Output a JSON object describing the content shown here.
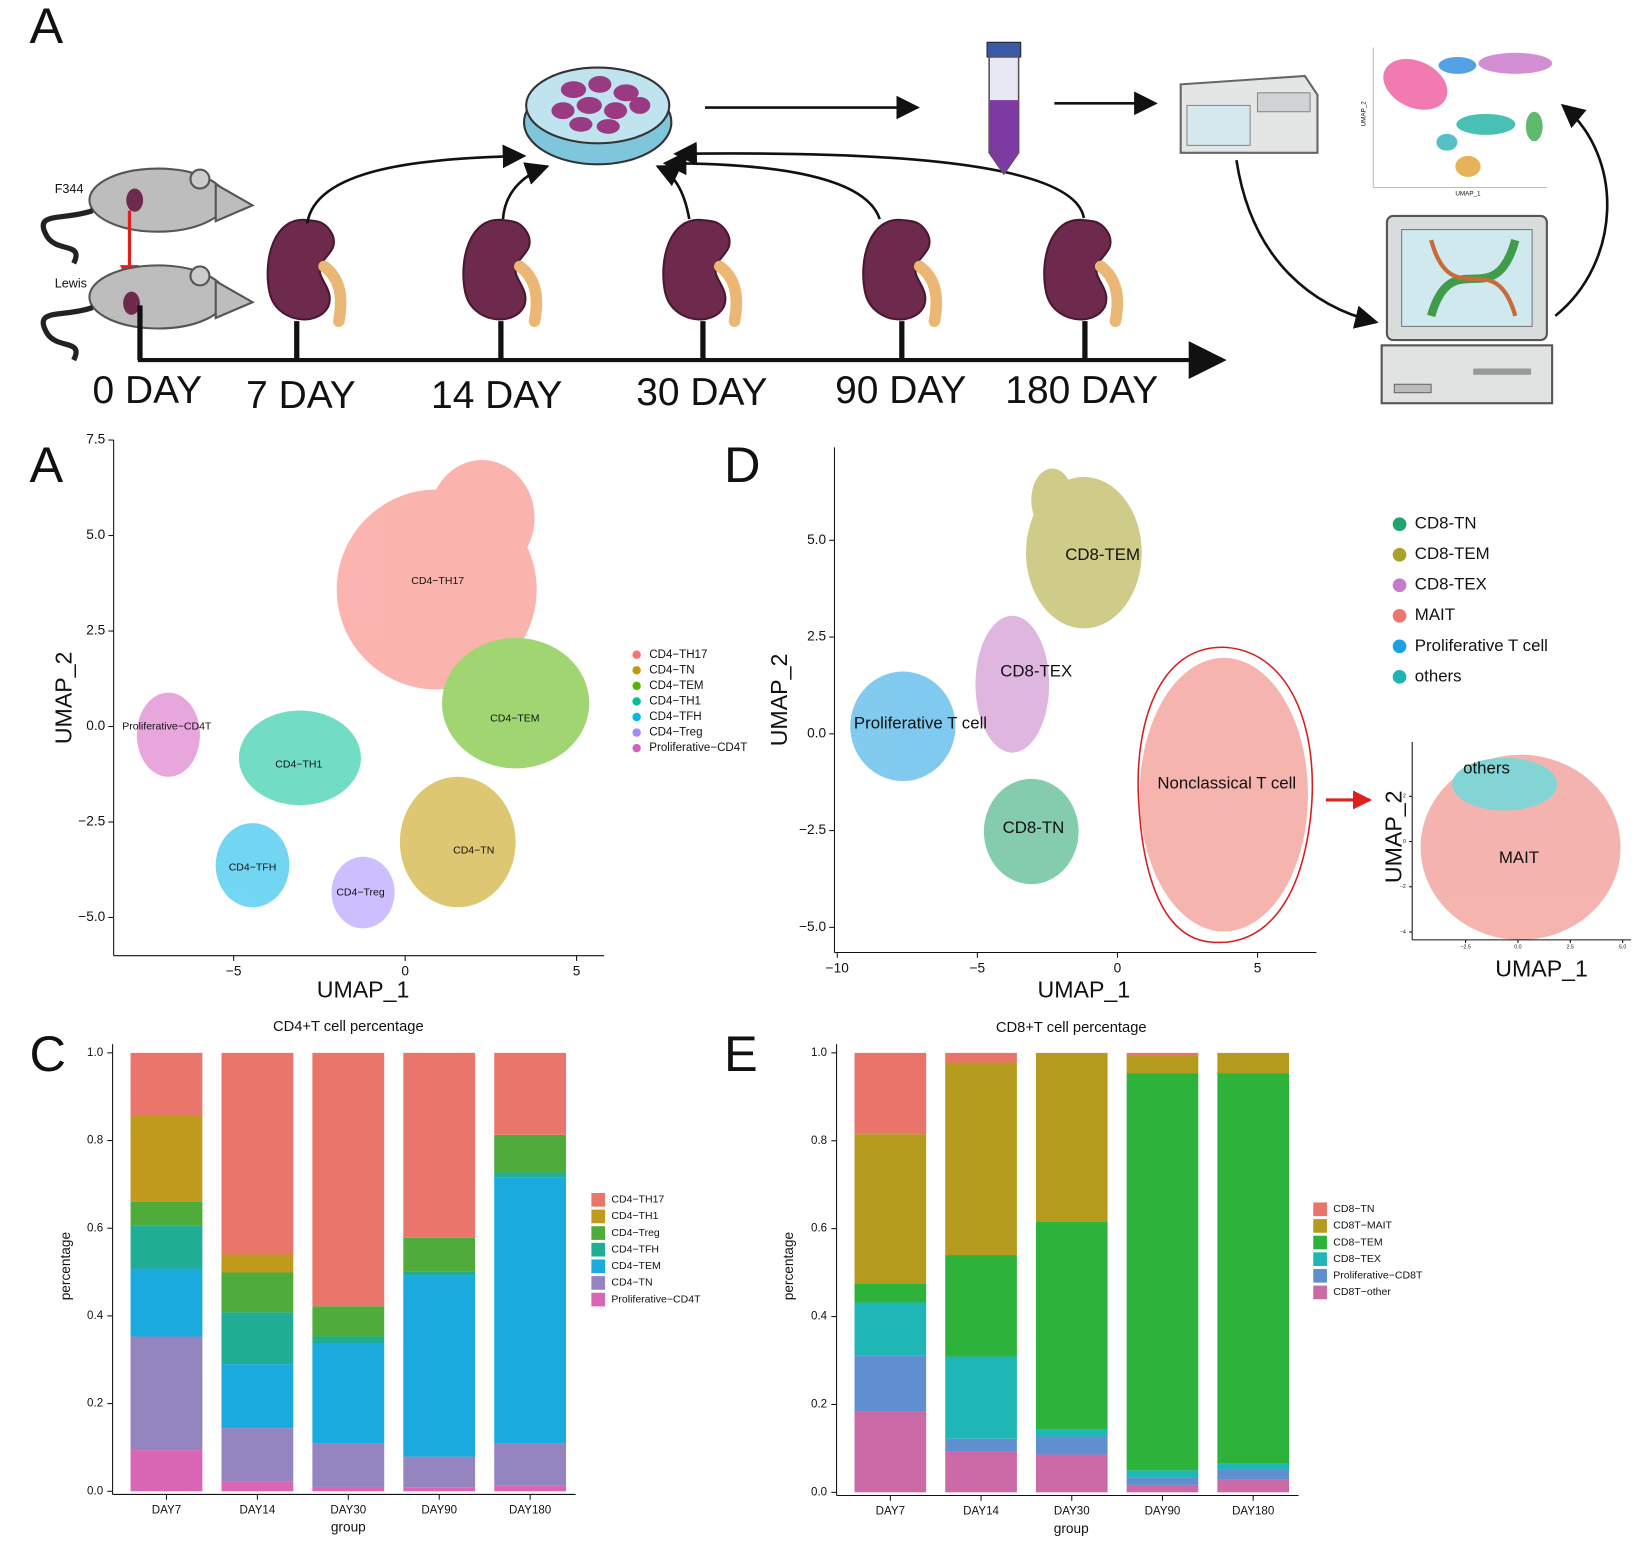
{
  "schematic": {
    "label": "A",
    "donor": "F344",
    "recipient": "Lewis",
    "days": [
      "0 DAY",
      "7 DAY",
      "14 DAY",
      "30 DAY",
      "90 DAY",
      "180 DAY"
    ],
    "mini_umap": {
      "x_label": "UMAP_1",
      "y_label": "UMAP_2"
    }
  },
  "chart_data": [
    {
      "type": "scatter",
      "panel": "A",
      "x_label": "UMAP_1",
      "y_label": "UMAP_2",
      "xlim": [
        -8.5,
        5.8
      ],
      "ylim": [
        -6.0,
        7.5
      ],
      "xticks": [
        {
          "value": -5,
          "label": "−5"
        },
        0,
        5
      ],
      "yticks": [
        {
          "value": -5,
          "label": "−5.0"
        },
        {
          "value": -2.5,
          "label": "−2.5"
        },
        {
          "value": 0,
          "label": "0.0"
        },
        {
          "value": 2.5,
          "label": "2.5"
        },
        {
          "value": 5,
          "label": "5.0"
        },
        {
          "value": 7.5,
          "label": "7.5"
        }
      ],
      "series": [
        {
          "name": "CD4−TH17",
          "color": "#f8766d"
        },
        {
          "name": "CD4−TN",
          "color": "#c49a00"
        },
        {
          "name": "CD4−TEM",
          "color": "#53b400"
        },
        {
          "name": "CD4−TH1",
          "color": "#00c094"
        },
        {
          "name": "CD4−TFH",
          "color": "#00b6eb"
        },
        {
          "name": "CD4−Treg",
          "color": "#a58aff"
        },
        {
          "name": "Proliferative−CD4T",
          "color": "#d45fc0"
        }
      ],
      "cluster_labels": [
        {
          "text": "CD4−TH17",
          "x": 0.95,
          "y": 3.8
        },
        {
          "text": "Proliferative−CD4T",
          "x": -6.95,
          "y": 0.0
        },
        {
          "text": "CD4−TH1",
          "x": -3.1,
          "y": -1.0
        },
        {
          "text": "CD4−TEM",
          "x": 3.2,
          "y": 0.2
        },
        {
          "text": "CD4−TFH",
          "x": -4.45,
          "y": -3.7
        },
        {
          "text": "CD4−Treg",
          "x": -1.3,
          "y": -4.35
        },
        {
          "text": "CD4−TN",
          "x": 2.0,
          "y": -3.25
        }
      ]
    },
    {
      "type": "scatter",
      "panel": "D",
      "x_label": "UMAP_1",
      "y_label": "UMAP_2",
      "xlim": [
        -10.1,
        7.1
      ],
      "ylim": [
        -5.65,
        7.4
      ],
      "xticks": [
        {
          "value": -10,
          "label": "−10"
        },
        {
          "value": -5,
          "label": "−5"
        },
        0,
        5
      ],
      "yticks": [
        {
          "value": -5,
          "label": "−5.0"
        },
        {
          "value": -2.5,
          "label": "−2.5"
        },
        {
          "value": 0,
          "label": "0.0"
        },
        {
          "value": 2.5,
          "label": "2.5"
        },
        {
          "value": 5,
          "label": "5.0"
        }
      ],
      "series": [
        {
          "name": "CD8-TN",
          "color": "#22a36e"
        },
        {
          "name": "CD8-TEM",
          "color": "#a9a22a"
        },
        {
          "name": "CD8-TEX",
          "color": "#c47cc8"
        },
        {
          "name": "MAIT",
          "color": "#ec766c"
        },
        {
          "name": "Proliferative T cell",
          "color": "#1ba0e2"
        },
        {
          "name": "others",
          "color": "#1eb4b4"
        }
      ],
      "cluster_labels": [
        {
          "text": "CD8-TEM",
          "x": -0.53,
          "y": 4.6
        },
        {
          "text": "CD8-TEX",
          "x": -2.9,
          "y": 1.6
        },
        {
          "text": "Proliferative T cell",
          "x": -7.03,
          "y": 0.25
        },
        {
          "text": "Nonclassical T cell",
          "x": 3.9,
          "y": -1.3
        },
        {
          "text": "CD8-TN",
          "x": -3.0,
          "y": -2.45
        }
      ]
    },
    {
      "type": "scatter",
      "x_label": "UMAP_1",
      "y_label": "UMAP_2",
      "xlim": [
        -5.05,
        5.4
      ],
      "ylim": [
        -4.35,
        4.4
      ],
      "xticks": [
        {
          "value": -2.5,
          "label": "−2.5"
        },
        {
          "value": 0,
          "label": "0.0"
        },
        {
          "value": 2.5,
          "label": "2.5"
        },
        {
          "value": 5,
          "label": "5.0"
        }
      ],
      "yticks": [
        {
          "value": -4,
          "label": "−4"
        },
        {
          "value": -2,
          "label": "−2"
        },
        0,
        2
      ],
      "cluster_labels": [
        {
          "text": "others",
          "x": -1.5,
          "y": 3.2
        },
        {
          "text": "MAIT",
          "x": 0.05,
          "y": -0.75
        }
      ]
    },
    {
      "type": "bar",
      "stacked": true,
      "panel": "C",
      "title": "CD4+T cell percentage",
      "x_label": "group",
      "y_label": "percentage",
      "categories": [
        "DAY7",
        "DAY14",
        "DAY30",
        "DAY90",
        "DAY180"
      ],
      "ylim": [
        0,
        1.02
      ],
      "yticks": [
        {
          "value": 0,
          "label": "0.0"
        },
        {
          "value": 0.2,
          "label": "0.2"
        },
        {
          "value": 0.4,
          "label": "0.4"
        },
        {
          "value": 0.6,
          "label": "0.6"
        },
        {
          "value": 0.8,
          "label": "0.8"
        },
        {
          "value": 1,
          "label": "1.0"
        }
      ],
      "series": [
        {
          "name": "CD4−TH17",
          "color": "#ea756b",
          "values": [
            0.144,
            0.46,
            0.578,
            0.422,
            0.187
          ]
        },
        {
          "name": "CD4−TH1",
          "color": "#c09a1c",
          "values": [
            0.196,
            0.041,
            0,
            0,
            0
          ]
        },
        {
          "name": "CD4−Treg",
          "color": "#4fab3a",
          "values": [
            0.053,
            0.091,
            0.069,
            0.077,
            0.086
          ]
        },
        {
          "name": "CD4−TFH",
          "color": "#1fae94",
          "values": [
            0.099,
            0.118,
            0.017,
            0.009,
            0.012
          ]
        },
        {
          "name": "CD4−TEM",
          "color": "#1aaade",
          "values": [
            0.155,
            0.146,
            0.226,
            0.413,
            0.605
          ]
        },
        {
          "name": "CD4−TN",
          "color": "#9484c0",
          "values": [
            0.259,
            0.122,
            0.1,
            0.071,
            0.096
          ]
        },
        {
          "name": "Proliferative−CD4T",
          "color": "#d866b4",
          "values": [
            0.094,
            0.022,
            0.01,
            0.008,
            0.014
          ]
        }
      ]
    },
    {
      "type": "bar",
      "stacked": true,
      "panel": "E",
      "title": "CD8+T cell percentage",
      "x_label": "group",
      "y_label": "percentage",
      "categories": [
        "DAY7",
        "DAY14",
        "DAY30",
        "DAY90",
        "DAY180"
      ],
      "ylim": [
        0,
        1.02
      ],
      "yticks": [
        {
          "value": 0,
          "label": "0.0"
        },
        {
          "value": 0.2,
          "label": "0.2"
        },
        {
          "value": 0.4,
          "label": "0.4"
        },
        {
          "value": 0.6,
          "label": "0.6"
        },
        {
          "value": 0.8,
          "label": "0.8"
        },
        {
          "value": 1,
          "label": "1.0"
        }
      ],
      "series": [
        {
          "name": "CD8−TN",
          "color": "#ea746a",
          "values": [
            0.185,
            0.022,
            0,
            0.005,
            0
          ]
        },
        {
          "name": "CD8T−MAIT",
          "color": "#b49b1e",
          "values": [
            0.34,
            0.438,
            0.384,
            0.041,
            0.046
          ]
        },
        {
          "name": "CD8−TEM",
          "color": "#2db33b",
          "values": [
            0.043,
            0.231,
            0.472,
            0.904,
            0.889
          ]
        },
        {
          "name": "CD8−TEX",
          "color": "#1fb6b6",
          "values": [
            0.12,
            0.187,
            0.017,
            0.016,
            0.012
          ]
        },
        {
          "name": "Proliferative−CD8T",
          "color": "#5f8fcf",
          "values": [
            0.127,
            0.028,
            0.041,
            0.017,
            0.024
          ]
        },
        {
          "name": "CD8T−other",
          "color": "#cc6aa8",
          "values": [
            0.185,
            0.094,
            0.086,
            0.017,
            0.029
          ]
        }
      ]
    }
  ]
}
